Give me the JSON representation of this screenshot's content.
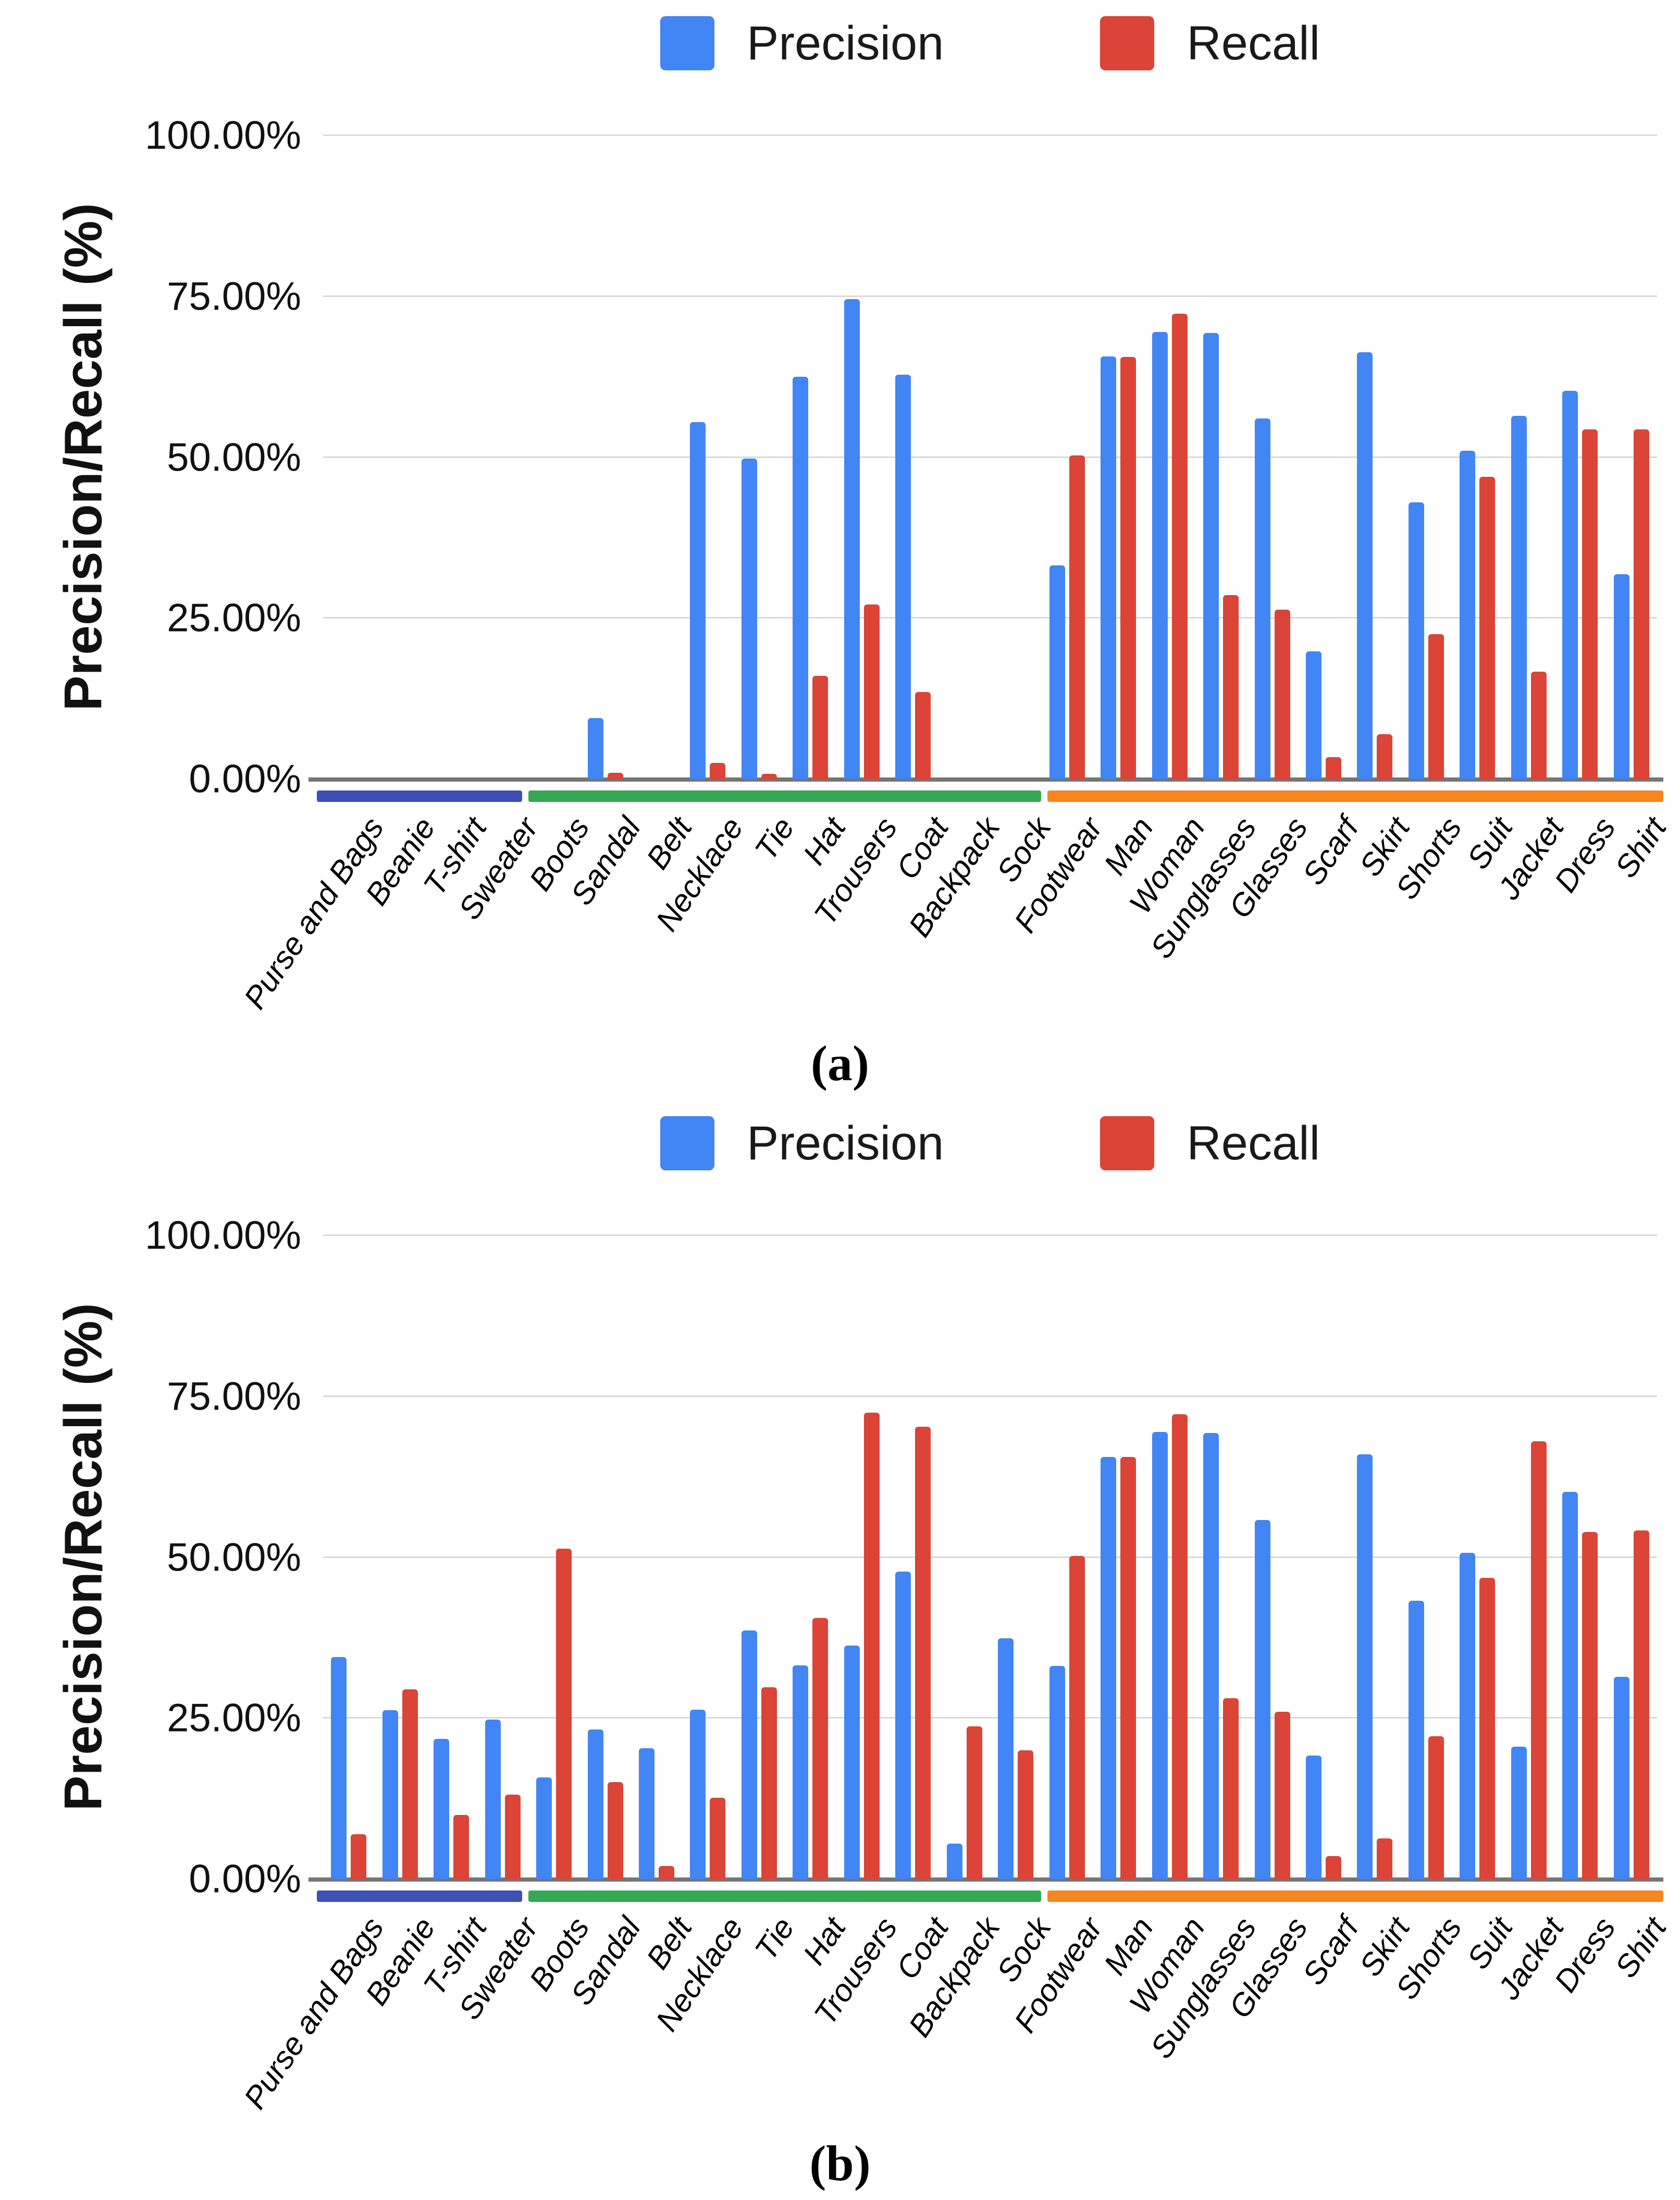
{
  "colors": {
    "precision": "#4285F4",
    "recall": "#DB4437",
    "grid": "#d9d9d9",
    "axis": "#757575",
    "strip_navy": "#3D50B5",
    "strip_green": "#34A853",
    "strip_orange": "#F6861F"
  },
  "legend": {
    "precision_label": "Precision",
    "recall_label": "Recall"
  },
  "y_axis": {
    "title": "Precision/Recall (%)",
    "ticks": [
      "100.00%",
      "75.00%",
      "50.00%",
      "25.00%",
      "0.00%"
    ],
    "min": 0,
    "max": 100
  },
  "captions": {
    "a": "(a)",
    "b": "(b)"
  },
  "chart_data": [
    {
      "id": "a",
      "type": "bar",
      "caption": "(a)",
      "ylabel": "Precision/Recall (%)",
      "ylim": [
        0,
        100
      ],
      "yticks_percent": [
        100,
        75,
        50,
        25,
        0
      ],
      "grid": true,
      "legend_position": "top",
      "categories": [
        "Purse and Bags",
        "Beanie",
        "T-shirt",
        "Sweater",
        "Boots",
        "Sandal",
        "Belt",
        "Necklace",
        "Tie",
        "Hat",
        "Trousers",
        "Coat",
        "Backpack",
        "Sock",
        "Footwear",
        "Man",
        "Woman",
        "Sunglasses",
        "Glasses",
        "Scarf",
        "Skirt",
        "Shorts",
        "Suit",
        "Jacket",
        "Dress",
        "Shirt"
      ],
      "series": [
        {
          "name": "Precision",
          "color": "#4285F4",
          "values": [
            0,
            0,
            0,
            0,
            0,
            9.5,
            0,
            55.5,
            49.8,
            62.5,
            74.6,
            62.8,
            0,
            0,
            33.2,
            65.7,
            69.5,
            69.3,
            56.0,
            19.8,
            66.3,
            43.0,
            51.0,
            56.4,
            60.3,
            31.8
          ]
        },
        {
          "name": "Recall",
          "color": "#DB4437",
          "values": [
            0,
            0,
            0,
            0,
            0,
            1.0,
            0,
            2.5,
            0.8,
            16.0,
            27.1,
            13.5,
            0,
            0,
            50.3,
            65.6,
            72.3,
            28.6,
            26.3,
            3.4,
            7.0,
            22.5,
            47.0,
            16.7,
            54.3,
            54.3
          ]
        }
      ],
      "category_groups": [
        {
          "count": 4,
          "color": "#3D50B5"
        },
        {
          "count": 10,
          "color": "#34A853"
        },
        {
          "count": 12,
          "color": "#F6861F"
        }
      ]
    },
    {
      "id": "b",
      "type": "bar",
      "caption": "(b)",
      "ylabel": "Precision/Recall (%)",
      "ylim": [
        0,
        100
      ],
      "yticks_percent": [
        100,
        75,
        50,
        25,
        0
      ],
      "grid": true,
      "legend_position": "top",
      "categories": [
        "Purse and Bags",
        "Beanie",
        "T-shirt",
        "Sweater",
        "Boots",
        "Sandal",
        "Belt",
        "Necklace",
        "Tie",
        "Hat",
        "Trousers",
        "Coat",
        "Backpack",
        "Sock",
        "Footwear",
        "Man",
        "Woman",
        "Sunglasses",
        "Glasses",
        "Scarf",
        "Skirt",
        "Shorts",
        "Suit",
        "Jacket",
        "Dress",
        "Shirt"
      ],
      "series": [
        {
          "name": "Precision",
          "color": "#4285F4",
          "values": [
            34.5,
            26.2,
            21.8,
            24.8,
            15.8,
            23.2,
            20.3,
            26.3,
            38.6,
            33.2,
            36.3,
            47.8,
            5.5,
            37.4,
            33.1,
            65.6,
            69.5,
            69.3,
            55.8,
            19.2,
            66.0,
            43.2,
            50.7,
            20.6,
            60.2,
            31.4
          ]
        },
        {
          "name": "Recall",
          "color": "#DB4437",
          "values": [
            7.0,
            29.5,
            10.0,
            13.1,
            51.3,
            15.1,
            2.0,
            12.6,
            29.8,
            40.6,
            72.5,
            70.3,
            23.7,
            20.0,
            50.2,
            65.6,
            72.2,
            28.1,
            26.0,
            3.6,
            6.3,
            22.2,
            46.8,
            68.0,
            53.9,
            54.2
          ]
        }
      ],
      "category_groups": [
        {
          "count": 4,
          "color": "#3D50B5"
        },
        {
          "count": 10,
          "color": "#34A853"
        },
        {
          "count": 12,
          "color": "#F6861F"
        }
      ]
    }
  ]
}
